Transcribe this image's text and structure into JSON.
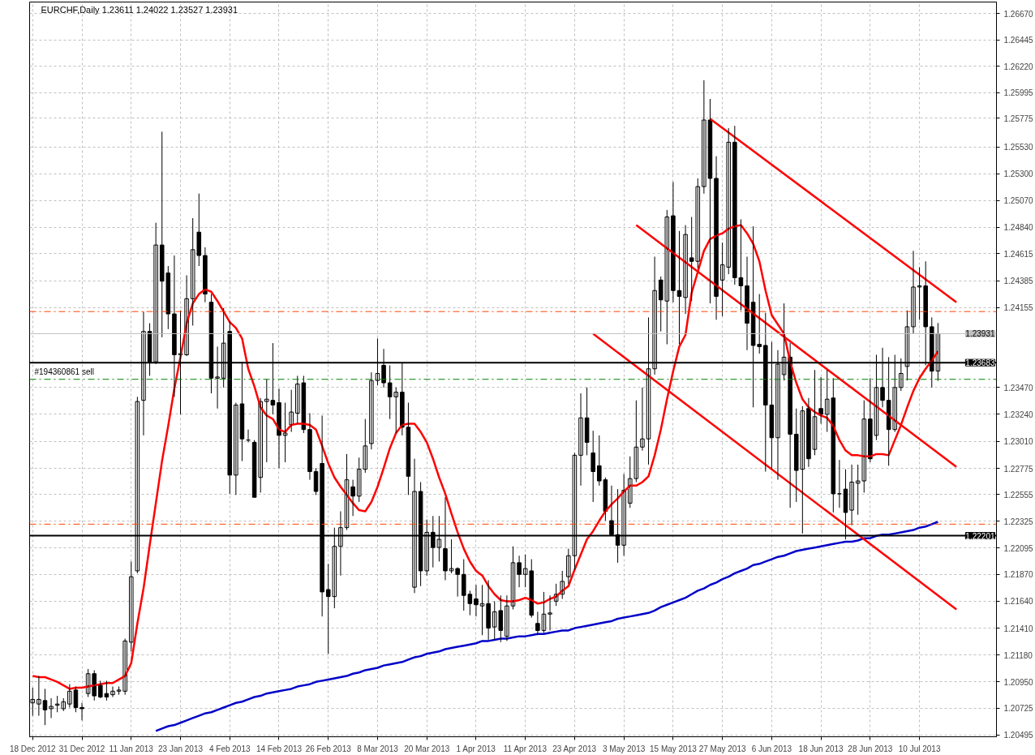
{
  "chart_data": {
    "type": "candlestick",
    "title": "EURCHF,Daily  1.23611 1.24022 1.23527 1.23931",
    "categories": [
      "18 Dec 2012",
      null,
      null,
      null,
      null,
      null,
      null,
      null,
      "31 Dec 2012",
      null,
      null,
      null,
      null,
      null,
      null,
      null,
      "11 Jan 2013",
      null,
      null,
      null,
      null,
      null,
      null,
      null,
      "23 Jan 2013",
      null,
      null,
      null,
      null,
      null,
      null,
      null,
      "4 Feb 2013",
      null,
      null,
      null,
      null,
      null,
      null,
      null,
      "14 Feb 2013",
      null,
      null,
      null,
      null,
      null,
      null,
      null,
      "26 Feb 2013",
      null,
      null,
      null,
      null,
      null,
      null,
      null,
      "8 Mar 2013",
      null,
      null,
      null,
      null,
      null,
      null,
      null,
      "20 Mar 2013",
      null,
      null,
      null,
      null,
      null,
      null,
      null,
      "1 Apr 2013",
      null,
      null,
      null,
      null,
      null,
      null,
      null,
      "11 Apr 2013",
      null,
      null,
      null,
      null,
      null,
      null,
      null,
      "23 Apr 2013",
      null,
      null,
      null,
      null,
      null,
      null,
      null,
      "3 May 2013",
      null,
      null,
      null,
      null,
      null,
      null,
      null,
      "15 May 2013",
      null,
      null,
      null,
      null,
      null,
      null,
      null,
      "27 May 2013",
      null,
      null,
      null,
      null,
      null,
      null,
      null,
      "6 Jun 2013",
      null,
      null,
      null,
      null,
      null,
      null,
      null,
      "18 Jun 2013",
      null,
      null,
      null,
      null,
      null,
      null,
      null,
      "28 Jun 2013",
      null,
      null,
      null,
      null,
      null,
      null,
      null,
      "10 Jul 2013",
      null,
      null,
      null,
      null,
      null,
      null
    ],
    "ohlc": [
      [
        1.2077,
        1.209,
        1.2066,
        1.208
      ],
      [
        1.2076,
        1.21,
        1.2066,
        1.208
      ],
      [
        1.2079,
        1.2089,
        1.2058,
        1.2071
      ],
      [
        1.2072,
        1.2081,
        1.2064,
        1.2074
      ],
      [
        1.2075,
        1.2083,
        1.2069,
        1.2076
      ],
      [
        1.2072,
        1.2081,
        1.207,
        1.2078
      ],
      [
        1.2076,
        1.2093,
        1.2073,
        1.2087
      ],
      [
        1.2088,
        1.2091,
        1.2069,
        1.2073
      ],
      [
        1.2073,
        1.2077,
        1.2062,
        1.2072
      ],
      [
        1.2085,
        1.2106,
        1.2082,
        1.2102
      ],
      [
        1.2102,
        1.2105,
        1.2079,
        1.2083
      ],
      [
        1.2092,
        1.2096,
        1.2081,
        1.2082
      ],
      [
        1.2085,
        1.2096,
        1.2079,
        1.2082
      ],
      [
        1.2084,
        1.2091,
        1.2082,
        1.2087
      ],
      [
        1.2087,
        1.2091,
        1.2084,
        1.2088
      ],
      [
        1.2087,
        1.2132,
        1.2084,
        1.213
      ],
      [
        1.2129,
        1.2198,
        1.2121,
        1.2185
      ],
      [
        1.219,
        1.2339,
        1.2188,
        1.2335
      ],
      [
        1.2336,
        1.2412,
        1.2306,
        1.2395
      ],
      [
        1.2395,
        1.2402,
        1.2357,
        1.2369
      ],
      [
        1.2369,
        1.2488,
        1.2367,
        1.2469
      ],
      [
        1.2469,
        1.2566,
        1.239,
        1.2438
      ],
      [
        1.2445,
        1.2451,
        1.2397,
        1.241
      ],
      [
        1.241,
        1.246,
        1.2339,
        1.2375
      ],
      [
        1.2375,
        1.2413,
        1.2324,
        1.2376
      ],
      [
        1.2375,
        1.2443,
        1.2374,
        1.2423
      ],
      [
        1.2423,
        1.2492,
        1.24,
        1.2465
      ],
      [
        1.248,
        1.2513,
        1.2451,
        1.246
      ],
      [
        1.246,
        1.2467,
        1.242,
        1.2427
      ],
      [
        1.242,
        1.2427,
        1.2342,
        1.2355
      ],
      [
        1.2355,
        1.2382,
        1.2329,
        1.2356
      ],
      [
        1.2355,
        1.2415,
        1.2347,
        1.2385
      ],
      [
        1.2395,
        1.2404,
        1.2256,
        1.2272
      ],
      [
        1.2272,
        1.2334,
        1.2255,
        1.2332
      ],
      [
        1.2333,
        1.2369,
        1.2284,
        1.2303
      ],
      [
        1.2302,
        1.2311,
        1.23,
        1.2302
      ],
      [
        1.23,
        1.2302,
        1.2253,
        1.2253
      ],
      [
        1.227,
        1.2338,
        1.2257,
        1.2335
      ],
      [
        1.2335,
        1.2354,
        1.2283,
        1.2337
      ],
      [
        1.2336,
        1.2385,
        1.2324,
        1.2332
      ],
      [
        1.2334,
        1.2346,
        1.2278,
        1.2306
      ],
      [
        1.2306,
        1.2334,
        1.2283,
        1.2308
      ],
      [
        1.2315,
        1.2345,
        1.2309,
        1.2326
      ],
      [
        1.2325,
        1.2357,
        1.2316,
        1.235
      ],
      [
        1.2351,
        1.2357,
        1.2308,
        1.2311
      ],
      [
        1.2311,
        1.2325,
        1.2268,
        1.2275
      ],
      [
        1.2275,
        1.2278,
        1.2255,
        1.2258
      ],
      [
        1.2282,
        1.2323,
        1.2151,
        1.2172
      ],
      [
        1.2174,
        1.2196,
        1.2119,
        1.2168
      ],
      [
        1.2168,
        1.2227,
        1.2158,
        1.2211
      ],
      [
        1.2211,
        1.2241,
        1.2186,
        1.2227
      ],
      [
        1.2227,
        1.229,
        1.2225,
        1.2268
      ],
      [
        1.2262,
        1.2268,
        1.2237,
        1.2254
      ],
      [
        1.2254,
        1.2287,
        1.2249,
        1.2277
      ],
      [
        1.2277,
        1.232,
        1.2274,
        1.2297
      ],
      [
        1.2299,
        1.236,
        1.2294,
        1.2353
      ],
      [
        1.2353,
        1.2389,
        1.2349,
        1.2359
      ],
      [
        1.2366,
        1.238,
        1.2347,
        1.2351
      ],
      [
        1.2351,
        1.2366,
        1.232,
        1.2339
      ],
      [
        1.2339,
        1.2347,
        1.2308,
        1.2343
      ],
      [
        1.2343,
        1.2368,
        1.2306,
        1.2313
      ],
      [
        1.2313,
        1.2334,
        1.2255,
        1.2271
      ],
      [
        1.2176,
        1.2286,
        1.2171,
        1.2258
      ],
      [
        1.2258,
        1.2266,
        1.2177,
        1.219
      ],
      [
        1.219,
        1.2234,
        1.2186,
        1.2223
      ],
      [
        1.2223,
        1.2237,
        1.2193,
        1.221
      ],
      [
        1.221,
        1.2237,
        1.2198,
        1.2217
      ],
      [
        1.2209,
        1.2253,
        1.2182,
        1.219
      ],
      [
        1.219,
        1.2217,
        1.2188,
        1.2192
      ],
      [
        1.2192,
        1.2193,
        1.2168,
        1.2187
      ],
      [
        1.2187,
        1.22,
        1.2156,
        1.2169
      ],
      [
        1.217,
        1.2173,
        1.2152,
        1.2162
      ],
      [
        1.2166,
        1.2178,
        1.2151,
        1.2161
      ],
      [
        1.216,
        1.2178,
        1.2135,
        1.2162
      ],
      [
        1.2162,
        1.2182,
        1.2131,
        1.2141
      ],
      [
        1.2142,
        1.2164,
        1.2131,
        1.2155
      ],
      [
        1.2156,
        1.2169,
        1.2129,
        1.2139
      ],
      [
        1.2134,
        1.2169,
        1.213,
        1.216
      ],
      [
        1.216,
        1.2211,
        1.2157,
        1.2197
      ],
      [
        1.2197,
        1.2203,
        1.2176,
        1.2187
      ],
      [
        1.2187,
        1.2204,
        1.2176,
        1.2192
      ],
      [
        1.219,
        1.22,
        1.215,
        1.2152
      ],
      [
        1.2145,
        1.2155,
        1.2135,
        1.2139
      ],
      [
        1.2139,
        1.2172,
        1.2137,
        1.2153
      ],
      [
        1.2153,
        1.2169,
        1.2139,
        1.2154
      ],
      [
        1.2164,
        1.2179,
        1.216,
        1.217
      ],
      [
        1.217,
        1.219,
        1.2166,
        1.2181
      ],
      [
        1.2185,
        1.2209,
        1.2179,
        1.2203
      ],
      [
        1.2203,
        1.2291,
        1.2191,
        1.2289
      ],
      [
        1.2289,
        1.2342,
        1.2263,
        1.2321
      ],
      [
        1.2321,
        1.2347,
        1.2289,
        1.23
      ],
      [
        1.2291,
        1.231,
        1.2249,
        1.2275
      ],
      [
        1.228,
        1.2306,
        1.2263,
        1.2267
      ],
      [
        1.2268,
        1.227,
        1.2233,
        1.2241
      ],
      [
        1.2233,
        1.2263,
        1.222,
        1.2221
      ],
      [
        1.2221,
        1.226,
        1.2197,
        1.2212
      ],
      [
        1.2212,
        1.2273,
        1.2203,
        1.2259
      ],
      [
        1.2248,
        1.2288,
        1.2244,
        1.2269
      ],
      [
        1.2269,
        1.2336,
        1.2266,
        1.2296
      ],
      [
        1.2296,
        1.2347,
        1.2293,
        1.2303
      ],
      [
        1.2303,
        1.2407,
        1.2281,
        1.2363
      ],
      [
        1.2363,
        1.2459,
        1.2358,
        1.243
      ],
      [
        1.2439,
        1.2442,
        1.2395,
        1.2422
      ],
      [
        1.2421,
        1.2499,
        1.2384,
        1.2493
      ],
      [
        1.2494,
        1.2523,
        1.242,
        1.243
      ],
      [
        1.243,
        1.2481,
        1.2384,
        1.2425
      ],
      [
        1.2424,
        1.2486,
        1.241,
        1.2478
      ],
      [
        1.2458,
        1.2493,
        1.2421,
        1.2455
      ],
      [
        1.2455,
        1.2526,
        1.2449,
        1.2519
      ],
      [
        1.2519,
        1.261,
        1.2513,
        1.2576
      ],
      [
        1.2576,
        1.2594,
        1.2419,
        1.2526
      ],
      [
        1.2526,
        1.2545,
        1.2405,
        1.2425
      ],
      [
        1.2439,
        1.2471,
        1.2408,
        1.2452
      ],
      [
        1.245,
        1.2569,
        1.2444,
        1.2557
      ],
      [
        1.2557,
        1.2571,
        1.2435,
        1.2441
      ],
      [
        1.2441,
        1.2491,
        1.2413,
        1.2434
      ],
      [
        1.2434,
        1.2459,
        1.2379,
        1.2402
      ],
      [
        1.242,
        1.2485,
        1.233,
        1.2383
      ],
      [
        1.2384,
        1.2427,
        1.2376,
        1.2382
      ],
      [
        1.2383,
        1.2411,
        1.2275,
        1.2332
      ],
      [
        1.2332,
        1.2386,
        1.2277,
        1.2304
      ],
      [
        1.2304,
        1.2379,
        1.2268,
        1.2367
      ],
      [
        1.2358,
        1.2419,
        1.2353,
        1.2373
      ],
      [
        1.2373,
        1.2385,
        1.2244,
        1.2307
      ],
      [
        1.2307,
        1.2329,
        1.2249,
        1.2276
      ],
      [
        1.2277,
        1.2331,
        1.2222,
        1.2327
      ],
      [
        1.2329,
        1.2338,
        1.2279,
        1.2286
      ],
      [
        1.2294,
        1.2362,
        1.2289,
        1.2322
      ],
      [
        1.2329,
        1.2356,
        1.2316,
        1.2324
      ],
      [
        1.2324,
        1.2362,
        1.2309,
        1.2337
      ],
      [
        1.2338,
        1.2355,
        1.224,
        1.2256
      ],
      [
        1.2256,
        1.2285,
        1.2244,
        1.2256
      ],
      [
        1.226,
        1.2277,
        1.2217,
        1.224
      ],
      [
        1.2242,
        1.2281,
        1.2229,
        1.2266
      ],
      [
        1.2265,
        1.2281,
        1.2238,
        1.2267
      ],
      [
        1.2267,
        1.2336,
        1.2257,
        1.232
      ],
      [
        1.232,
        1.2355,
        1.2283,
        1.2286
      ],
      [
        1.2306,
        1.2375,
        1.2302,
        1.2347
      ],
      [
        1.2347,
        1.2381,
        1.233,
        1.2336
      ],
      [
        1.2336,
        1.2373,
        1.228,
        1.2311
      ],
      [
        1.2311,
        1.2375,
        1.2309,
        1.2347
      ],
      [
        1.2347,
        1.2372,
        1.2344,
        1.2359
      ],
      [
        1.2365,
        1.2413,
        1.2353,
        1.2399
      ],
      [
        1.2399,
        1.2464,
        1.2393,
        1.2433
      ],
      [
        1.2433,
        1.245,
        1.2405,
        1.2434
      ],
      [
        1.2434,
        1.2455,
        1.2366,
        1.2399
      ],
      [
        1.2399,
        1.2407,
        1.2347,
        1.2361
      ],
      [
        1.23611,
        1.24022,
        1.23527,
        1.23931
      ],
      null,
      null,
      null
    ],
    "series": [
      {
        "type": "line",
        "color": "#ff0000",
        "values": [
          1.21,
          1.2099,
          1.2099,
          1.2097,
          1.2095,
          1.2092,
          1.2089,
          1.209,
          1.209,
          1.2091,
          1.2092,
          1.2093,
          1.2094,
          1.2094,
          1.2097,
          1.21,
          1.2111,
          1.2145,
          1.2175,
          1.2212,
          1.2248,
          1.2284,
          1.2314,
          1.2346,
          1.2373,
          1.2402,
          1.2419,
          1.2427,
          1.2431,
          1.2429,
          1.2421,
          1.2412,
          1.2403,
          1.2398,
          1.2389,
          1.2363,
          1.2348,
          1.233,
          1.2323,
          1.232,
          1.2311,
          1.2309,
          1.2315,
          1.2316,
          1.2316,
          1.2315,
          1.2311,
          1.2297,
          1.2282,
          1.227,
          1.2262,
          1.2255,
          1.2248,
          1.2242,
          1.2241,
          1.2249,
          1.2262,
          1.2278,
          1.2295,
          1.2308,
          1.2315,
          1.2316,
          1.2316,
          1.2309,
          1.23,
          1.2286,
          1.227,
          1.2256,
          1.2239,
          1.2223,
          1.2209,
          1.2198,
          1.219,
          1.2186,
          1.2177,
          1.217,
          1.2165,
          1.2164,
          1.2164,
          1.2165,
          1.2167,
          1.2165,
          1.2162,
          1.2163,
          1.2166,
          1.2168,
          1.2173,
          1.2177,
          1.2191,
          1.2204,
          1.2217,
          1.2224,
          1.2233,
          1.2241,
          1.2247,
          1.2252,
          1.2258,
          1.2263,
          1.2263,
          1.2266,
          1.2271,
          1.2289,
          1.2311,
          1.2337,
          1.2361,
          1.2382,
          1.2392,
          1.2428,
          1.2446,
          1.2464,
          1.2474,
          1.2477,
          1.2479,
          1.2483,
          1.2485,
          1.2486,
          1.2479,
          1.247,
          1.2455,
          1.243,
          1.2409,
          1.2401,
          1.2393,
          1.2369,
          1.2351,
          1.2337,
          1.233,
          1.2326,
          1.2323,
          1.2321,
          1.2314,
          1.2302,
          1.2293,
          1.2289,
          1.2289,
          1.2288,
          1.2288,
          1.229,
          1.229,
          1.2289,
          1.2302,
          1.2315,
          1.233,
          1.2344,
          1.2355,
          1.2363,
          1.237,
          1.2378,
          null,
          null,
          null
        ]
      },
      {
        "type": "line",
        "color": "#0000c8",
        "values": [
          null,
          null,
          null,
          null,
          null,
          null,
          null,
          null,
          null,
          null,
          null,
          null,
          null,
          null,
          null,
          null,
          null,
          null,
          null,
          null,
          1.2053,
          1.2055,
          1.2057,
          1.2058,
          1.206,
          1.2062,
          1.2064,
          1.2066,
          1.2068,
          1.2069,
          1.2071,
          1.2073,
          1.2075,
          1.2077,
          1.2078,
          1.208,
          1.2082,
          1.2083,
          1.2085,
          1.2086,
          1.2087,
          1.2088,
          1.2089,
          1.2091,
          1.2092,
          1.2093,
          1.2095,
          1.2096,
          1.2097,
          1.2098,
          1.2099,
          1.21,
          1.2102,
          1.2103,
          1.2105,
          1.2106,
          1.2107,
          1.2109,
          1.211,
          1.2111,
          1.2112,
          1.2114,
          1.2116,
          1.2117,
          1.2119,
          1.212,
          1.2121,
          1.2123,
          1.2124,
          1.2125,
          1.2126,
          1.2127,
          1.2128,
          1.213,
          1.213,
          1.2131,
          1.2132,
          1.2132,
          1.2133,
          1.2134,
          1.2134,
          1.2135,
          1.2136,
          1.2136,
          1.2137,
          1.2138,
          1.2139,
          1.2139,
          1.2141,
          1.2142,
          1.2143,
          1.2144,
          1.2145,
          1.2146,
          1.2147,
          1.2149,
          1.215,
          1.2151,
          1.2152,
          1.2153,
          1.2154,
          1.2156,
          1.2159,
          1.2161,
          1.2163,
          1.2165,
          1.2167,
          1.217,
          1.2173,
          1.2175,
          1.2178,
          1.218,
          1.2183,
          1.2185,
          1.2188,
          1.219,
          1.2192,
          1.2195,
          1.2196,
          1.2198,
          1.22,
          1.2202,
          1.2203,
          1.2205,
          1.2207,
          1.2208,
          1.2209,
          1.221,
          1.2211,
          1.2212,
          1.2213,
          1.2214,
          1.2215,
          1.2215,
          1.2216,
          1.2218,
          1.2218,
          1.222,
          1.2221,
          1.2221,
          1.2222,
          1.2223,
          1.2224,
          1.2225,
          1.2227,
          1.2228,
          1.223,
          1.2232,
          null,
          null,
          null
        ]
      },
      {
        "type": "line",
        "color": "#ff0000",
        "values": [
          null,
          null,
          null,
          null,
          null,
          null,
          null,
          null,
          null,
          null,
          null,
          null,
          null,
          null,
          null,
          null,
          null,
          null,
          null,
          null,
          null,
          null,
          null,
          null,
          null,
          null,
          null,
          null,
          null,
          null,
          null,
          null,
          null,
          null,
          null,
          null,
          null,
          null,
          null,
          null,
          null,
          null,
          null,
          null,
          null,
          null,
          null,
          null,
          null,
          null,
          null,
          null,
          null,
          null,
          null,
          null,
          null,
          null,
          null,
          null,
          null,
          null,
          null,
          null,
          null,
          null,
          null,
          null,
          null,
          null,
          null,
          null,
          null,
          null,
          null,
          null,
          null,
          null,
          null,
          null,
          null,
          null,
          null,
          null,
          null,
          null,
          null,
          null,
          null,
          null,
          null,
          null,
          null,
          null,
          null,
          null,
          null,
          null,
          null,
          null,
          null,
          null,
          null,
          null,
          null,
          null,
          null,
          null,
          null,
          null,
          1.2577,
          null,
          null,
          null,
          null,
          null,
          null,
          null,
          null,
          null,
          null,
          null,
          null,
          null,
          null,
          null,
          null,
          null,
          null,
          null,
          null,
          null,
          null,
          null,
          null,
          null,
          null,
          null,
          null,
          null,
          null,
          null,
          null,
          null,
          null,
          null,
          null,
          null,
          null,
          null,
          1.242
        ]
      },
      {
        "type": "line",
        "color": "#ff0000",
        "values": [
          null,
          null,
          null,
          null,
          null,
          null,
          null,
          null,
          null,
          null,
          null,
          null,
          null,
          null,
          null,
          null,
          null,
          null,
          null,
          null,
          null,
          null,
          null,
          null,
          null,
          null,
          null,
          null,
          null,
          null,
          null,
          null,
          null,
          null,
          null,
          null,
          null,
          null,
          null,
          null,
          null,
          null,
          null,
          null,
          null,
          null,
          null,
          null,
          null,
          null,
          null,
          null,
          null,
          null,
          null,
          null,
          null,
          null,
          null,
          null,
          null,
          null,
          null,
          null,
          null,
          null,
          null,
          null,
          null,
          null,
          null,
          null,
          null,
          null,
          null,
          null,
          null,
          null,
          null,
          null,
          null,
          null,
          null,
          null,
          null,
          null,
          null,
          null,
          null,
          null,
          null,
          null,
          null,
          null,
          null,
          null,
          null,
          null,
          1.2486,
          null,
          null,
          null,
          null,
          null,
          null,
          null,
          null,
          null,
          null,
          null,
          null,
          null,
          null,
          null,
          null,
          null,
          null,
          null,
          null,
          null,
          null,
          null,
          null,
          null,
          null,
          null,
          null,
          null,
          null,
          null,
          null,
          null,
          null,
          null,
          null,
          null,
          null,
          null,
          null,
          null,
          null,
          null,
          null,
          null,
          null,
          null,
          null,
          null,
          null,
          null,
          1.2279
        ]
      },
      {
        "type": "line",
        "color": "#ff0000",
        "values": [
          null,
          null,
          null,
          null,
          null,
          null,
          null,
          null,
          null,
          null,
          null,
          null,
          null,
          null,
          null,
          null,
          null,
          null,
          null,
          null,
          null,
          null,
          null,
          null,
          null,
          null,
          null,
          null,
          null,
          null,
          null,
          null,
          null,
          null,
          null,
          null,
          null,
          null,
          null,
          null,
          null,
          null,
          null,
          null,
          null,
          null,
          null,
          null,
          null,
          null,
          null,
          null,
          null,
          null,
          null,
          null,
          null,
          null,
          null,
          null,
          null,
          null,
          null,
          null,
          null,
          null,
          null,
          null,
          null,
          null,
          null,
          null,
          null,
          null,
          null,
          null,
          null,
          null,
          null,
          null,
          null,
          null,
          null,
          null,
          null,
          null,
          null,
          null,
          null,
          null,
          null,
          1.2393,
          null,
          null,
          null,
          null,
          null,
          null,
          null,
          null,
          null,
          null,
          null,
          null,
          null,
          null,
          null,
          null,
          null,
          null,
          null,
          null,
          null,
          null,
          null,
          null,
          null,
          null,
          null,
          null,
          null,
          null,
          null,
          null,
          null,
          null,
          null,
          null,
          null,
          null,
          null,
          null,
          null,
          null,
          null,
          null,
          null,
          null,
          null,
          null,
          null,
          null,
          null,
          null,
          null,
          null,
          null,
          null,
          null,
          null,
          1.2157
        ]
      }
    ],
    "ylim": [
      1.2048,
      1.2677
    ],
    "yticks": [
      {
        "value": 1.2667,
        "label": "1.26670"
      },
      {
        "value": 1.26445,
        "label": "1.26445"
      },
      {
        "value": 1.2622,
        "label": "1.26220"
      },
      {
        "value": 1.25995,
        "label": "1.25995"
      },
      {
        "value": 1.25775,
        "label": "1.25775"
      },
      {
        "value": 1.2553,
        "label": "1.25530"
      },
      {
        "value": 1.253,
        "label": "1.25300"
      },
      {
        "value": 1.2507,
        "label": "1.25070"
      },
      {
        "value": 1.2484,
        "label": "1.24840"
      },
      {
        "value": 1.24615,
        "label": "1.24615"
      },
      {
        "value": 1.24385,
        "label": "1.24385"
      },
      {
        "value": 1.24155,
        "label": "1.24155"
      },
      {
        "value": 1.2347,
        "label": "1.23470"
      },
      {
        "value": 1.2324,
        "label": "1.23240"
      },
      {
        "value": 1.2301,
        "label": "1.23010"
      },
      {
        "value": 1.22775,
        "label": "1.22775"
      },
      {
        "value": 1.22555,
        "label": "1.22555"
      },
      {
        "value": 1.22325,
        "label": "1.22325"
      },
      {
        "value": 1.22095,
        "label": "1.22095"
      },
      {
        "value": 1.2187,
        "label": "1.21870"
      },
      {
        "value": 1.2164,
        "label": "1.21640"
      },
      {
        "value": 1.2141,
        "label": "1.21410"
      },
      {
        "value": 1.2118,
        "label": "1.21180"
      },
      {
        "value": 1.2095,
        "label": "1.20950"
      },
      {
        "value": 1.20725,
        "label": "1.20725"
      },
      {
        "value": 1.20495,
        "label": "1.20495"
      }
    ],
    "ref_lines": [
      {
        "axis": "y",
        "value": 1.23931,
        "label": "1.23931",
        "color": "#c0c0c0",
        "line_style": "solid"
      },
      {
        "axis": "y",
        "value": 1.23683,
        "label": "1.23683",
        "color": "#000000",
        "line_style": "solid"
      },
      {
        "axis": "y",
        "value": 1.22201,
        "label": "1.22201",
        "color": "#000000",
        "line_style": "solid"
      },
      {
        "axis": "y",
        "value": 1.2412,
        "color": "#ff4500",
        "line_style": "dashed"
      },
      {
        "axis": "y",
        "value": 1.223,
        "color": "#ff4500",
        "line_style": "dashed"
      },
      {
        "axis": "y",
        "value": 1.2354,
        "label": "#194360861 sell",
        "color": "#008000",
        "line_style": "dashed"
      }
    ],
    "grid": true
  }
}
